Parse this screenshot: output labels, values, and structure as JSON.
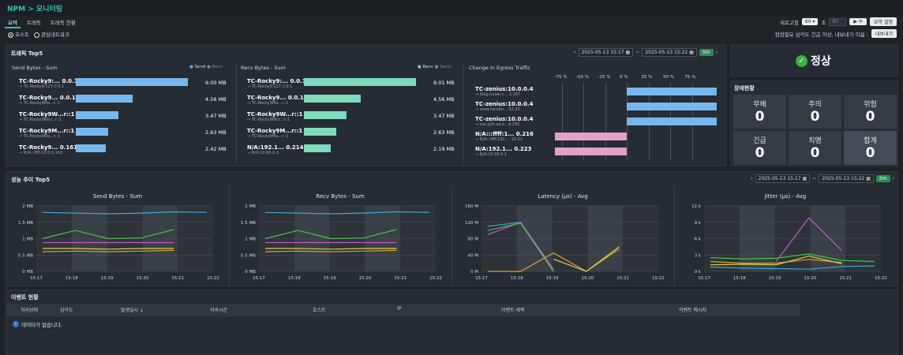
{
  "header": {
    "app": "NPM",
    "sep": ">",
    "title": "모니터링"
  },
  "tabs": [
    "요약",
    "트래픽",
    "트래픽 현황"
  ],
  "refresh": {
    "label": "새로고침",
    "value": "60",
    "unit": "초",
    "input_value": "60",
    "settings_btn": "요약 설정"
  },
  "filters": {
    "host": "호스트",
    "network": "관심네트워크",
    "notice": "점검필요 심각도 긴급 이상, 내보내기 이름 :",
    "export_btn": "내보내기"
  },
  "traffic": {
    "title": "트래픽 Top5",
    "date_from": "2025-05-13 15:17",
    "tilde": "~",
    "date_to": "2025-05-13 15:22",
    "interval": "5m",
    "send": {
      "title": "Send Bytes - Sum",
      "legend": [
        "Send",
        "Recv"
      ],
      "rows": [
        {
          "name": "TC-Rocky9:... 0.0.1",
          "sub": "→ TC-Rocky9:127.0.0.1",
          "value": "9.00 MB",
          "pct": 1.0
        },
        {
          "name": "TC-Rocky9... 0.0.1",
          "sub": "→ TC-Rocky9Ma...r::1",
          "value": "4.56 MB",
          "pct": 0.51
        },
        {
          "name": "TC-Rocky9W...r::1",
          "sub": "→ TC-Rocky9Wor...r::1",
          "value": "3.47 MB",
          "pct": 0.38
        },
        {
          "name": "TC-Rocky9M...r::1",
          "sub": "→ TC-Rocky9Ma...r::1",
          "value": "2.63 MB",
          "pct": 0.29
        },
        {
          "name": "TC-Rocky9... 0.161",
          "sub": "→ N/A:::ffff:10.0.0.162",
          "value": "2.42 MB",
          "pct": 0.27
        }
      ]
    },
    "recv": {
      "title": "Recv Bytes - Sum",
      "legend": [
        "Recv",
        "Send"
      ],
      "rows": [
        {
          "name": "TC-Rocky9:... 0.0.1",
          "sub": "→ TC-Rocky9:127.0.0.1",
          "value": "9.01 MB",
          "pct": 1.0
        },
        {
          "name": "TC-Rocky9... 0.0.1",
          "sub": "→ TC-Rocky9Ma...r::1",
          "value": "4.56 MB",
          "pct": 0.51
        },
        {
          "name": "TC-Rocky9W...r::1",
          "sub": "→ TC-Rocky9Wor...r::1",
          "value": "3.47 MB",
          "pct": 0.38
        },
        {
          "name": "TC-Rocky9M...r::1",
          "sub": "→ TC-Rocky9Ma...r::1",
          "value": "2.63 MB",
          "pct": 0.29
        },
        {
          "name": "N/A:192.1... 0.214",
          "sub": "→ N/A:10.96.0.1",
          "value": "2.19 MB",
          "pct": 0.24
        }
      ]
    },
    "egress": {
      "title": "Change in Egress Traffic",
      "ticks": [
        "-75 %",
        "-50 %",
        "-25 %",
        "0 %",
        "25 %",
        "50 %",
        "75 %"
      ],
      "rows": [
        {
          "name": "TC-zenius:10.0.0.4",
          "sub": "→ blog.naver.c... 2.187",
          "pct": 94
        },
        {
          "name": "TC-zenius:10.0.0.4",
          "sub": "→ www.facebo... 52.35",
          "pct": 94
        },
        {
          "name": "TC-zenius:10.0.0.4",
          "sub": "→ sso.q2b.ao.k...4.250",
          "pct": 94
        },
        {
          "name": "N/A:::ffff:1... 0.216",
          "sub": "→ N/A:::ffff:192.... 10.21",
          "pct": -75
        },
        {
          "name": "N/A:192.1... 0.223",
          "sub": "→ N/A:10.96.0.1",
          "pct": -75
        }
      ]
    }
  },
  "status": {
    "label": "정상"
  },
  "faults": {
    "title": "장애현황",
    "items": [
      {
        "label": "무해",
        "value": "0"
      },
      {
        "label": "주의",
        "value": "0"
      },
      {
        "label": "위험",
        "value": "0"
      },
      {
        "label": "긴급",
        "value": "0"
      },
      {
        "label": "치명",
        "value": "0"
      },
      {
        "label": "합계",
        "value": "0"
      }
    ]
  },
  "perf": {
    "title": "성능 추이 Top5",
    "date_from": "2025-05-13 15:17",
    "tilde": "~",
    "date_to": "2025-05-13 15:22",
    "interval": "5m"
  },
  "chart_data": [
    {
      "type": "line",
      "title": "Send Bytes - Sum",
      "ylim": [
        0,
        2
      ],
      "yticks": [
        "0 MB",
        "0.5 MB",
        "1 MB",
        "1.5 MB",
        "2 MB"
      ],
      "x": [
        "15:17",
        "15:18",
        "15:19",
        "15:20",
        "15:21",
        "15:22"
      ],
      "series": [
        {
          "name": "s1",
          "color": "#39a9d6",
          "values": [
            1.8,
            1.78,
            1.76,
            1.78,
            1.82,
            1.8
          ]
        },
        {
          "name": "s2",
          "color": "#4cc24c",
          "values": [
            1.0,
            1.25,
            1.0,
            1.02,
            1.28,
            null
          ]
        },
        {
          "name": "s3",
          "color": "#c858c8",
          "values": [
            0.88,
            0.88,
            0.88,
            0.88,
            0.88,
            null
          ]
        },
        {
          "name": "s4",
          "color": "#e0a030",
          "values": [
            0.6,
            0.62,
            0.6,
            0.62,
            0.64,
            null
          ]
        },
        {
          "name": "s5",
          "color": "#d6d640",
          "values": [
            0.7,
            0.7,
            0.68,
            0.7,
            0.7,
            null
          ]
        }
      ]
    },
    {
      "type": "line",
      "title": "Recv Bytes - Sum",
      "ylim": [
        0,
        2
      ],
      "yticks": [
        "0 MB",
        "0.5 MB",
        "1 MB",
        "1.5 MB",
        "2 MB"
      ],
      "x": [
        "15:17",
        "15:18",
        "15:19",
        "15:20",
        "15:21",
        "15:22"
      ],
      "series": [
        {
          "name": "s1",
          "color": "#39a9d6",
          "values": [
            1.8,
            1.78,
            1.76,
            1.78,
            1.82,
            1.8
          ]
        },
        {
          "name": "s2",
          "color": "#4cc24c",
          "values": [
            1.0,
            1.25,
            1.0,
            1.02,
            1.28,
            null
          ]
        },
        {
          "name": "s3",
          "color": "#c858c8",
          "values": [
            0.88,
            0.88,
            0.88,
            0.88,
            0.88,
            null
          ]
        },
        {
          "name": "s4",
          "color": "#e0a030",
          "values": [
            0.6,
            0.62,
            0.6,
            0.62,
            0.64,
            null
          ]
        },
        {
          "name": "s5",
          "color": "#d6d640",
          "values": [
            0.7,
            0.7,
            0.68,
            0.7,
            0.7,
            null
          ]
        }
      ]
    },
    {
      "type": "line",
      "title": "Latency (µs) - Avg",
      "ylim": [
        0,
        160
      ],
      "yticks": [
        "0 M",
        "40 M",
        "80 M",
        "120 M",
        "160 M"
      ],
      "x": [
        "15:17",
        "15:18",
        "15:19",
        "15:20",
        "15:21",
        "15:22"
      ],
      "series": [
        {
          "name": "s1",
          "color": "#39a9d6",
          "values": [
            110,
            120,
            0,
            null,
            null,
            null
          ]
        },
        {
          "name": "s2",
          "color": "#c858c8",
          "values": [
            90,
            120,
            5,
            null,
            null,
            null
          ]
        },
        {
          "name": "s3",
          "color": "#e0a030",
          "values": [
            0,
            0,
            45,
            0,
            55,
            null
          ]
        },
        {
          "name": "s4",
          "color": "#d6d640",
          "values": [
            null,
            null,
            30,
            0,
            60,
            null
          ]
        },
        {
          "name": "s5",
          "color": "#4cc24c",
          "values": [
            100,
            118,
            0,
            null,
            null,
            null
          ]
        }
      ]
    },
    {
      "type": "line",
      "title": "Jitter (µs) - Avg",
      "ylim": [
        0,
        12
      ],
      "yticks": [
        "0 k",
        "3 k",
        "6 k",
        "9 k",
        "12 k"
      ],
      "x": [
        "15:17",
        "15:18",
        "15:19",
        "15:20",
        "15:21",
        "15:22"
      ],
      "series": [
        {
          "name": "s1",
          "color": "#39a9d6",
          "values": [
            0.8,
            0.6,
            0.5,
            0.4,
            0.9,
            1.0
          ]
        },
        {
          "name": "s2",
          "color": "#4cc24c",
          "values": [
            2.5,
            2.3,
            2.4,
            3.2,
            2.0,
            1.8
          ]
        },
        {
          "name": "s3",
          "color": "#c858c8",
          "values": [
            null,
            null,
            1.8,
            9.8,
            3.8,
            null
          ]
        },
        {
          "name": "s4",
          "color": "#e0a030",
          "values": [
            1.8,
            1.5,
            1.5,
            2.2,
            1.6,
            null
          ]
        },
        {
          "name": "s5",
          "color": "#d6d640",
          "values": [
            1.2,
            1.3,
            1.2,
            2.8,
            1.4,
            null
          ]
        }
      ]
    }
  ],
  "events": {
    "title": "이벤트 현황",
    "columns": [
      "처리상태",
      "심각도",
      "발생일시 ⇣",
      "지속시간",
      "호스트",
      "IP",
      "이벤트 제목",
      "이벤트 메시지"
    ],
    "empty": "데이터가 없습니다."
  }
}
